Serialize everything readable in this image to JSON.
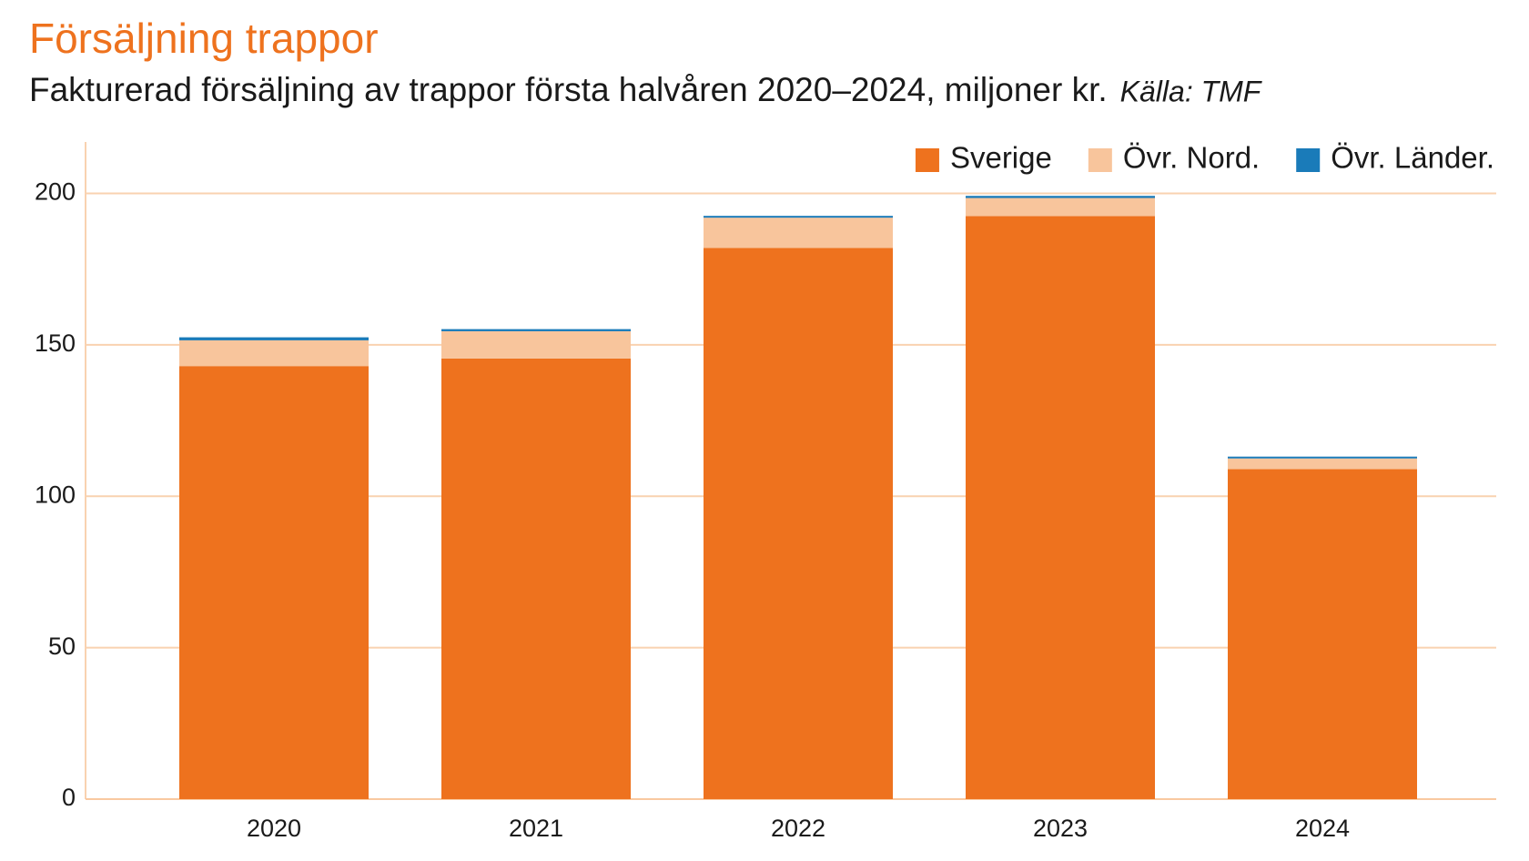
{
  "chart_data": {
    "type": "stacked_bar",
    "title": "Försäljning trappor",
    "subtitle": "Fakturerad försäljning av trappor första halvåren 2020–2024, miljoner kr.",
    "source": "Källa: TMF",
    "categories": [
      "2020",
      "2021",
      "2022",
      "2023",
      "2024"
    ],
    "series": [
      {
        "name": "Sverige",
        "color": "#ee721e",
        "values": [
          143,
          145.5,
          182,
          192.5,
          109
        ]
      },
      {
        "name": "Övr. Nord.",
        "color": "#f8c59c",
        "values": [
          8.5,
          9,
          10,
          6,
          3.5
        ]
      },
      {
        "name": "Övr. Länder.",
        "color": "#1a7bb9",
        "values": [
          1,
          0.7,
          0.6,
          0.7,
          0.6
        ]
      }
    ],
    "ylim": [
      0,
      217
    ],
    "yticks": [
      0,
      50,
      100,
      150,
      200
    ],
    "grid": true,
    "legend": "top-right"
  }
}
